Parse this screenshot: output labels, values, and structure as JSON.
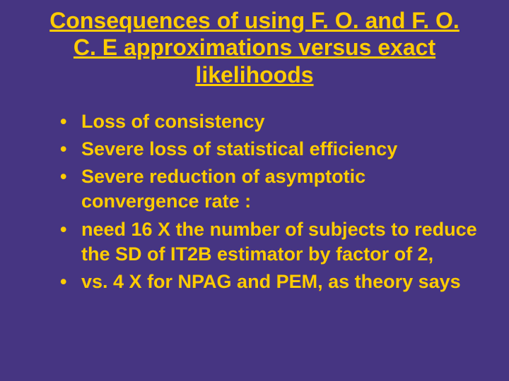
{
  "slide": {
    "background_color": "#463582",
    "text_color": "#ffcc00",
    "title_fontsize": 32,
    "bullet_fontsize": 27,
    "title": "Consequences of using F. O. and F. O. C. E approximations versus exact likelihoods",
    "bullets": [
      "Loss of consistency",
      "Severe loss of statistical efficiency",
      "Severe reduction of  asymptotic convergence rate :",
      "need 16 X the number of subjects to reduce the SD of IT2B estimator by factor of 2,",
      "vs. 4 X for NPAG and PEM, as theory says"
    ]
  }
}
